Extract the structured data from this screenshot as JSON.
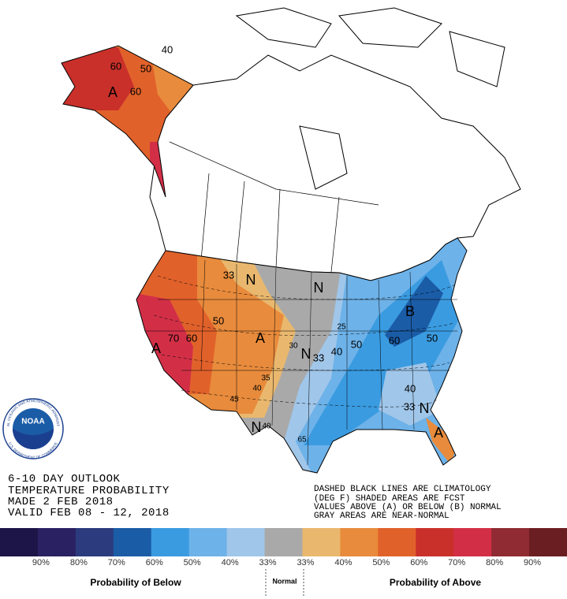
{
  "outlook": {
    "lines": [
      "6-10 DAY OUTLOOK",
      "TEMPERATURE PROBABILITY",
      "MADE  2 FEB 2018",
      "VALID  FEB 08 - 12, 2018"
    ]
  },
  "notes": [
    "DASHED BLACK LINES ARE CLIMATOLOGY",
    "(DEG F) SHADED AREAS ARE FCST",
    "VALUES ABOVE (A) OR BELOW (B) NORMAL",
    "GRAY AREAS ARE NEAR-NORMAL"
  ],
  "logo": {
    "name": "NOAA",
    "ring_top": "NATIONAL OCEANIC AND ATMOSPHERIC ADMINISTRATION",
    "ring_bottom": "U.S. DEPARTMENT OF COMMERCE"
  },
  "map": {
    "labels": [
      "60",
      "50",
      "40",
      "A",
      "60",
      "33",
      "N",
      "N",
      "50",
      "A",
      "70",
      "60",
      "A",
      "30",
      "N",
      "33",
      "40",
      "50",
      "25",
      "B",
      "60",
      "50",
      "40",
      "33",
      "N",
      "A",
      "35",
      "40",
      "45",
      "N",
      "40",
      "65"
    ]
  },
  "legend": {
    "colors": [
      "#1d1547",
      "#2a2163",
      "#2b3b7d",
      "#1b5ca7",
      "#3a9be0",
      "#6db2e9",
      "#a0c6e9",
      "#a9a9a9",
      "#e9b86e",
      "#e88b3c",
      "#e1612b",
      "#ca302a",
      "#d22f47",
      "#902a33",
      "#6b1e21"
    ],
    "labels": [
      "90%",
      "80%",
      "70%",
      "60%",
      "50%",
      "40%",
      "33%",
      "33%",
      "40%",
      "50%",
      "60%",
      "70%",
      "80%",
      "90%"
    ],
    "below": "Probability of Below",
    "normal": "Normal",
    "above": "Probability of Above"
  }
}
